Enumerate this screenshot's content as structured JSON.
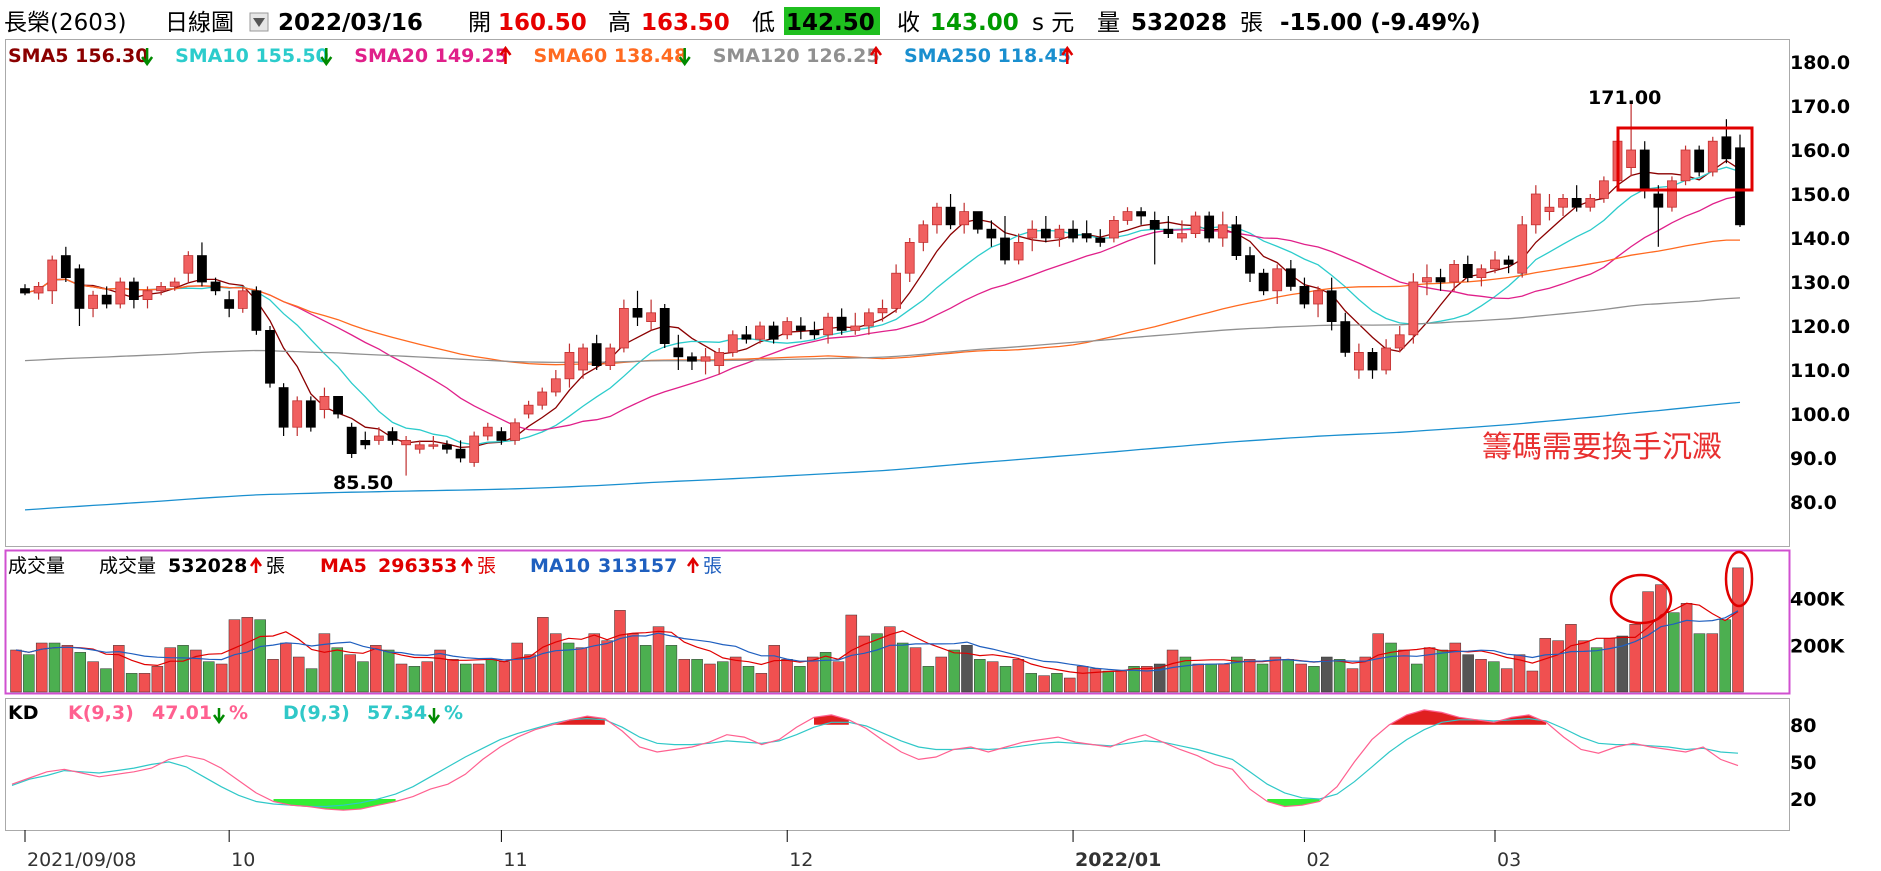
{
  "header": {
    "stock": "長榮(2603)",
    "chart_kind": "日線圖",
    "date": "2022/03/16",
    "open_label": "開",
    "open": "160.50",
    "high_label": "高",
    "high": "163.50",
    "low_label": "低",
    "low": "142.50",
    "close_label": "收",
    "close": "143.00",
    "close_unit": "s 元",
    "volume_label": "量",
    "volume": "532028",
    "volume_unit": "張",
    "change": "-15.00 (-9.49%)"
  },
  "colors": {
    "up": "#f06060",
    "down": "#000000",
    "vol_up": "#f05050",
    "vol_down": "#4caf50",
    "vol_flat": "#555555",
    "frame_price": "#aaaaaa",
    "frame_vol": "#d050d0"
  },
  "legend": [
    {
      "name": "SMA5",
      "value": "156.30",
      "dir": "down",
      "color": "#8b0000"
    },
    {
      "name": "SMA10",
      "value": "155.50",
      "dir": "down",
      "color": "#2ccccc"
    },
    {
      "name": "SMA20",
      "value": "149.25",
      "dir": "up",
      "color": "#e0208a"
    },
    {
      "name": "SMA60",
      "value": "138.48",
      "dir": "down",
      "color": "#ff6a20"
    },
    {
      "name": "SMA120",
      "value": "126.25",
      "dir": "up",
      "color": "#909090"
    },
    {
      "name": "SMA250",
      "value": "118.45",
      "dir": "up",
      "color": "#1a8fcf"
    }
  ],
  "annotations": {
    "high": "171.00",
    "low": "85.50",
    "note": "籌碼需要換手沉澱"
  },
  "volume_panel": {
    "title": "成交量",
    "label": "成交量",
    "value": "532028",
    "unit": "張",
    "ma5_label": "MA5",
    "ma5": "296353",
    "ma5_unit": "張",
    "ma10_label": "MA10",
    "ma10": "313157",
    "ma10_unit": "張"
  },
  "kd_panel": {
    "title": "KD",
    "k_label": "K(9,3)",
    "k": "47.01",
    "k_unit": "%",
    "d_label": "D(9,3)",
    "d": "57.34",
    "d_unit": "%"
  },
  "chart_data": {
    "type": "candlestick",
    "price_ylim": [
      70,
      185
    ],
    "price_ticks": [
      "180.0",
      "170.0",
      "160.0",
      "150.0",
      "140.0",
      "130.0",
      "120.0",
      "110.0",
      "100.0",
      "90.0",
      "80.0"
    ],
    "volume_ylim": [
      0,
      600000
    ],
    "volume_ticks": [
      "400K",
      "200K"
    ],
    "kd_ylim": [
      0,
      100
    ],
    "kd_ticks": [
      "80",
      "50",
      "20"
    ],
    "x_ticks": [
      {
        "label": "2021/09/08",
        "index": 0
      },
      {
        "label": "10",
        "index": 15
      },
      {
        "label": "11",
        "index": 35
      },
      {
        "label": "12",
        "index": 56
      },
      {
        "label": "2022/01",
        "index": 77
      },
      {
        "label": "02",
        "index": 94
      },
      {
        "label": "03",
        "index": 108
      }
    ],
    "ohlc": [
      [
        128.5,
        129.5,
        127,
        127.5
      ],
      [
        127.5,
        130,
        126,
        129
      ],
      [
        128,
        136,
        125,
        135
      ],
      [
        136,
        138,
        130,
        131
      ],
      [
        133,
        134,
        120,
        124
      ],
      [
        124,
        128,
        122,
        127
      ],
      [
        127,
        129,
        124,
        125
      ],
      [
        125,
        131,
        124,
        130
      ],
      [
        130,
        131,
        124,
        126
      ],
      [
        126,
        129,
        124,
        128
      ],
      [
        128,
        130,
        127,
        129
      ],
      [
        129,
        131,
        128,
        130
      ],
      [
        132,
        137,
        130,
        136
      ],
      [
        136,
        139,
        129,
        130
      ],
      [
        130,
        131,
        127,
        128
      ],
      [
        126,
        128,
        122,
        124
      ],
      [
        124,
        129,
        123,
        128
      ],
      [
        128,
        129,
        118,
        119
      ],
      [
        119,
        120,
        106,
        107
      ],
      [
        106,
        107,
        95,
        97
      ],
      [
        97,
        104,
        95,
        103
      ],
      [
        103,
        104,
        96,
        97
      ],
      [
        101,
        106,
        99,
        104
      ],
      [
        104,
        104,
        99,
        100
      ],
      [
        97,
        98,
        90,
        91
      ],
      [
        94,
        96,
        92,
        93
      ],
      [
        94,
        97,
        93,
        95
      ],
      [
        96,
        97,
        93,
        94
      ],
      [
        93,
        95,
        86,
        94
      ],
      [
        92,
        94,
        91,
        93
      ],
      [
        93,
        95,
        92,
        93
      ],
      [
        93,
        94,
        91,
        92
      ],
      [
        92,
        94,
        89,
        90
      ],
      [
        89,
        96,
        88,
        95
      ],
      [
        95,
        98,
        94,
        97
      ],
      [
        96,
        97,
        93,
        94
      ],
      [
        94,
        99,
        93,
        98
      ],
      [
        100,
        103,
        99,
        102
      ],
      [
        102,
        106,
        101,
        105
      ],
      [
        105,
        110,
        104,
        108
      ],
      [
        108,
        116,
        106,
        114
      ],
      [
        110,
        116,
        108,
        115
      ],
      [
        116,
        118,
        110,
        111
      ],
      [
        111,
        116,
        110,
        115
      ],
      [
        115,
        126,
        114,
        124
      ],
      [
        124,
        128,
        120,
        122
      ],
      [
        121,
        126,
        119,
        123
      ],
      [
        124,
        125,
        115,
        116
      ],
      [
        115,
        118,
        110,
        113
      ],
      [
        113,
        114,
        110,
        112
      ],
      [
        112,
        115,
        109,
        113
      ],
      [
        111,
        115,
        109,
        114
      ],
      [
        114,
        119,
        113,
        118
      ],
      [
        118,
        120,
        116,
        117
      ],
      [
        117,
        121,
        116,
        120
      ],
      [
        120,
        121,
        116,
        117
      ],
      [
        118,
        122,
        117,
        121
      ],
      [
        120,
        122,
        117,
        119
      ],
      [
        119,
        121,
        117,
        118
      ],
      [
        118,
        123,
        116,
        122
      ],
      [
        122,
        124,
        118,
        119
      ],
      [
        119,
        123,
        118,
        120
      ],
      [
        120,
        124,
        118,
        123
      ],
      [
        123,
        126,
        121,
        124
      ],
      [
        124,
        134,
        123,
        132
      ],
      [
        132,
        140,
        130,
        139
      ],
      [
        139,
        144,
        137,
        143
      ],
      [
        143,
        148,
        141,
        147
      ],
      [
        147,
        150,
        142,
        143
      ],
      [
        143,
        148,
        141,
        146
      ],
      [
        146,
        146,
        141,
        142
      ],
      [
        142,
        144,
        138,
        140
      ],
      [
        140,
        145,
        134,
        135
      ],
      [
        135,
        141,
        134,
        139
      ],
      [
        140,
        144,
        137,
        142
      ],
      [
        142,
        145,
        139,
        140
      ],
      [
        140,
        143,
        138,
        142
      ],
      [
        142,
        144,
        139,
        140
      ],
      [
        141,
        144,
        139,
        140
      ],
      [
        140,
        142,
        138,
        139
      ],
      [
        140,
        145,
        139,
        144
      ],
      [
        144,
        147,
        143,
        146
      ],
      [
        146,
        147,
        143,
        145
      ],
      [
        144,
        146,
        134,
        142
      ],
      [
        142,
        145,
        140,
        141
      ],
      [
        140,
        144,
        139,
        141
      ],
      [
        141,
        146,
        140,
        145
      ],
      [
        145,
        146,
        139,
        140
      ],
      [
        140,
        146,
        138,
        143
      ],
      [
        143,
        145,
        135,
        136
      ],
      [
        136,
        138,
        130,
        132
      ],
      [
        132,
        133,
        127,
        128
      ],
      [
        128,
        134,
        125,
        133
      ],
      [
        133,
        135,
        128,
        129
      ],
      [
        129,
        131,
        124,
        125
      ],
      [
        125,
        129,
        122,
        128
      ],
      [
        128,
        131,
        119,
        121
      ],
      [
        121,
        123,
        113,
        114
      ],
      [
        110,
        116,
        108,
        114
      ],
      [
        114,
        115,
        108,
        110
      ],
      [
        110,
        117,
        109,
        115
      ],
      [
        115,
        120,
        114,
        118
      ],
      [
        118,
        132,
        116,
        130
      ],
      [
        130,
        134,
        127,
        131
      ],
      [
        131,
        133,
        128,
        130
      ],
      [
        130,
        135,
        128,
        134
      ],
      [
        134,
        136,
        130,
        131
      ],
      [
        131,
        134,
        129,
        133
      ],
      [
        133,
        137,
        132,
        135
      ],
      [
        135,
        136,
        132,
        134
      ],
      [
        132,
        145,
        131,
        143
      ],
      [
        143,
        152,
        141,
        150
      ],
      [
        146,
        150,
        144,
        147
      ],
      [
        147,
        150,
        145,
        149
      ],
      [
        149,
        152,
        146,
        147
      ],
      [
        147,
        150,
        146,
        149
      ],
      [
        149,
        154,
        148,
        153
      ],
      [
        153,
        163,
        152,
        162
      ],
      [
        156,
        171,
        154,
        160
      ],
      [
        160,
        162,
        149,
        151
      ],
      [
        150,
        152,
        138,
        147
      ],
      [
        147,
        154,
        146,
        153
      ],
      [
        153,
        161,
        152,
        160
      ],
      [
        160,
        161,
        154,
        155
      ],
      [
        155,
        163,
        154,
        162
      ],
      [
        163,
        167,
        157,
        158
      ],
      [
        160.5,
        163.5,
        142.5,
        143
      ]
    ],
    "volume": [
      180000,
      160000,
      210000,
      210000,
      200000,
      170000,
      130000,
      100000,
      200000,
      80000,
      80000,
      110000,
      190000,
      200000,
      180000,
      130000,
      120000,
      310000,
      320000,
      310000,
      140000,
      210000,
      150000,
      100000,
      250000,
      190000,
      160000,
      130000,
      200000,
      180000,
      120000,
      110000,
      130000,
      180000,
      140000,
      120000,
      120000,
      140000,
      130000,
      210000,
      160000,
      320000,
      250000,
      210000,
      190000,
      250000,
      220000,
      350000,
      250000,
      200000,
      280000,
      200000,
      140000,
      140000,
      120000,
      130000,
      150000,
      110000,
      80000,
      200000,
      140000,
      110000,
      150000,
      170000,
      130000,
      330000,
      240000,
      250000,
      280000,
      210000,
      190000,
      110000,
      150000,
      180000,
      200000,
      140000,
      130000,
      110000,
      140000,
      80000,
      70000,
      80000,
      60000,
      110000,
      100000,
      90000,
      90000,
      110000,
      110000,
      120000,
      180000,
      150000,
      120000,
      120000,
      120000,
      150000,
      140000,
      120000,
      150000,
      140000,
      120000,
      110000,
      150000,
      140000,
      100000,
      150000,
      250000,
      210000,
      180000,
      120000,
      190000,
      180000,
      210000,
      160000,
      140000,
      130000,
      100000,
      160000,
      90000,
      230000,
      220000,
      290000,
      220000,
      190000,
      230000,
      240000,
      290000,
      430000,
      460000,
      340000,
      380000,
      250000,
      250000,
      310000,
      532028
    ],
    "kd": {
      "k": [
        32,
        37,
        42,
        44,
        41,
        38,
        40,
        42,
        45,
        52,
        55,
        52,
        45,
        35,
        25,
        18,
        15,
        14,
        12,
        11,
        12,
        15,
        18,
        22,
        28,
        32,
        40,
        52,
        62,
        70,
        76,
        80,
        84,
        87,
        85,
        75,
        62,
        58,
        60,
        62,
        66,
        72,
        70,
        64,
        68,
        78,
        86,
        88,
        84,
        77,
        67,
        58,
        52,
        54,
        60,
        62,
        58,
        62,
        66,
        68,
        70,
        66,
        64,
        62,
        68,
        72,
        66,
        60,
        55,
        48,
        44,
        28,
        18,
        14,
        15,
        18,
        30,
        50,
        68,
        80,
        88,
        92,
        90,
        86,
        84,
        82,
        86,
        88,
        82,
        70,
        60,
        57,
        62,
        65,
        62,
        60,
        58,
        62,
        52,
        47
      ],
      "d": [
        31,
        36,
        39,
        43,
        42,
        41,
        43,
        45,
        48,
        50,
        46,
        38,
        30,
        23,
        18,
        16,
        15,
        14,
        14,
        15,
        17,
        20,
        24,
        30,
        38,
        46,
        54,
        61,
        68,
        73,
        77,
        81,
        84,
        85,
        84,
        78,
        70,
        65,
        64,
        64,
        65,
        67,
        66,
        65,
        67,
        72,
        78,
        82,
        82,
        79,
        73,
        67,
        62,
        60,
        60,
        61,
        60,
        61,
        63,
        65,
        66,
        65,
        64,
        63,
        65,
        67,
        66,
        63,
        60,
        56,
        52,
        42,
        32,
        25,
        21,
        20,
        24,
        34,
        46,
        58,
        68,
        76,
        82,
        84,
        84,
        83,
        84,
        85,
        83,
        77,
        70,
        65,
        64,
        64,
        63,
        62,
        60,
        61,
        58,
        57
      ]
    }
  }
}
